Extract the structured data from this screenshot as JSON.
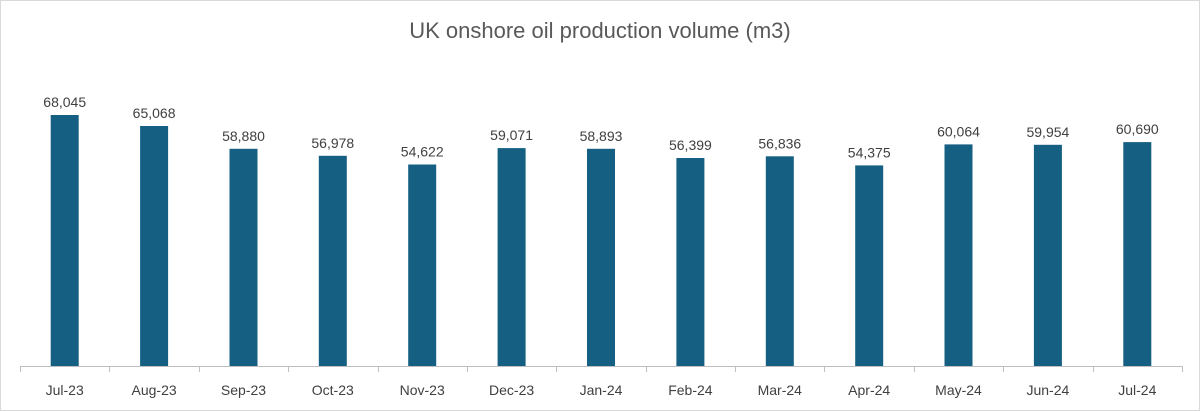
{
  "chart_data": {
    "type": "bar",
    "title": "UK onshore oil production volume (m3)",
    "xlabel": "",
    "ylabel": "",
    "categories": [
      "Jul-23",
      "Aug-23",
      "Sep-23",
      "Oct-23",
      "Nov-23",
      "Dec-23",
      "Jan-24",
      "Feb-24",
      "Mar-24",
      "Apr-24",
      "May-24",
      "Jun-24",
      "Jul-24"
    ],
    "values": [
      68045,
      65068,
      58880,
      56978,
      54622,
      59071,
      58893,
      56399,
      56836,
      54375,
      60064,
      59954,
      60690
    ],
    "value_labels": [
      "68,045",
      "65,068",
      "58,880",
      "56,978",
      "54,622",
      "59,071",
      "58,893",
      "56,399",
      "56,836",
      "54,375",
      "60,064",
      "59,954",
      "60,690"
    ],
    "ylim": [
      0,
      68045
    ],
    "grid": false,
    "legend": "none",
    "bar_color": "#155F82"
  }
}
